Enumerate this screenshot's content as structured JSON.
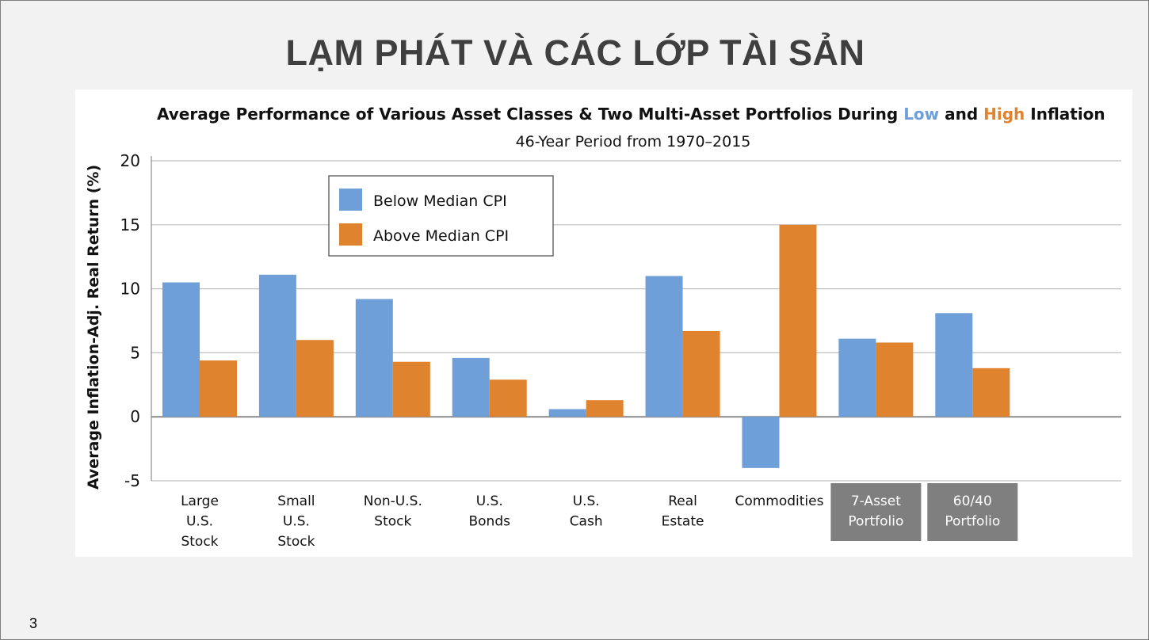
{
  "slide": {
    "title": "LẠM PHÁT VÀ CÁC LỚP TÀI SẢN",
    "page_number": "3"
  },
  "chart_data": {
    "type": "bar",
    "title_parts": [
      {
        "text": "Average Performance of Various Asset Classes & Two Multi-Asset Portfolios During ",
        "color": "#111111"
      },
      {
        "text": "Low",
        "color": "#6f9fd8"
      },
      {
        "text": " and ",
        "color": "#111111"
      },
      {
        "text": "High",
        "color": "#e0832e"
      },
      {
        "text": " Inflation",
        "color": "#111111"
      }
    ],
    "subtitle": "46-Year Period from 1970–2015",
    "ylabel": "Average Inflation-Adj. Real Return (%)",
    "ylim": [
      -5,
      20
    ],
    "yticks": [
      -5,
      0,
      5,
      10,
      15,
      20
    ],
    "grid": true,
    "legend_position": "top-left",
    "categories": [
      {
        "lines": [
          "Large",
          "U.S.",
          "Stock"
        ],
        "highlight": false
      },
      {
        "lines": [
          "Small",
          "U.S.",
          "Stock"
        ],
        "highlight": false
      },
      {
        "lines": [
          "Non-U.S.",
          "Stock"
        ],
        "highlight": false
      },
      {
        "lines": [
          "U.S.",
          "Bonds"
        ],
        "highlight": false
      },
      {
        "lines": [
          "U.S.",
          "Cash"
        ],
        "highlight": false
      },
      {
        "lines": [
          "Real",
          "Estate"
        ],
        "highlight": false
      },
      {
        "lines": [
          "Commodities"
        ],
        "highlight": false
      },
      {
        "lines": [
          "7-Asset",
          "Portfolio"
        ],
        "highlight": true
      },
      {
        "lines": [
          "60/40",
          "Portfolio"
        ],
        "highlight": true
      }
    ],
    "series": [
      {
        "name": "Below Median CPI",
        "color": "#6f9fd8",
        "values": [
          10.5,
          11.1,
          9.2,
          4.6,
          0.6,
          11.0,
          -4.0,
          6.1,
          8.1
        ]
      },
      {
        "name": "Above Median CPI",
        "color": "#e0832e",
        "values": [
          4.4,
          6.0,
          4.3,
          2.9,
          1.3,
          6.7,
          15.0,
          5.8,
          3.8
        ]
      }
    ]
  }
}
